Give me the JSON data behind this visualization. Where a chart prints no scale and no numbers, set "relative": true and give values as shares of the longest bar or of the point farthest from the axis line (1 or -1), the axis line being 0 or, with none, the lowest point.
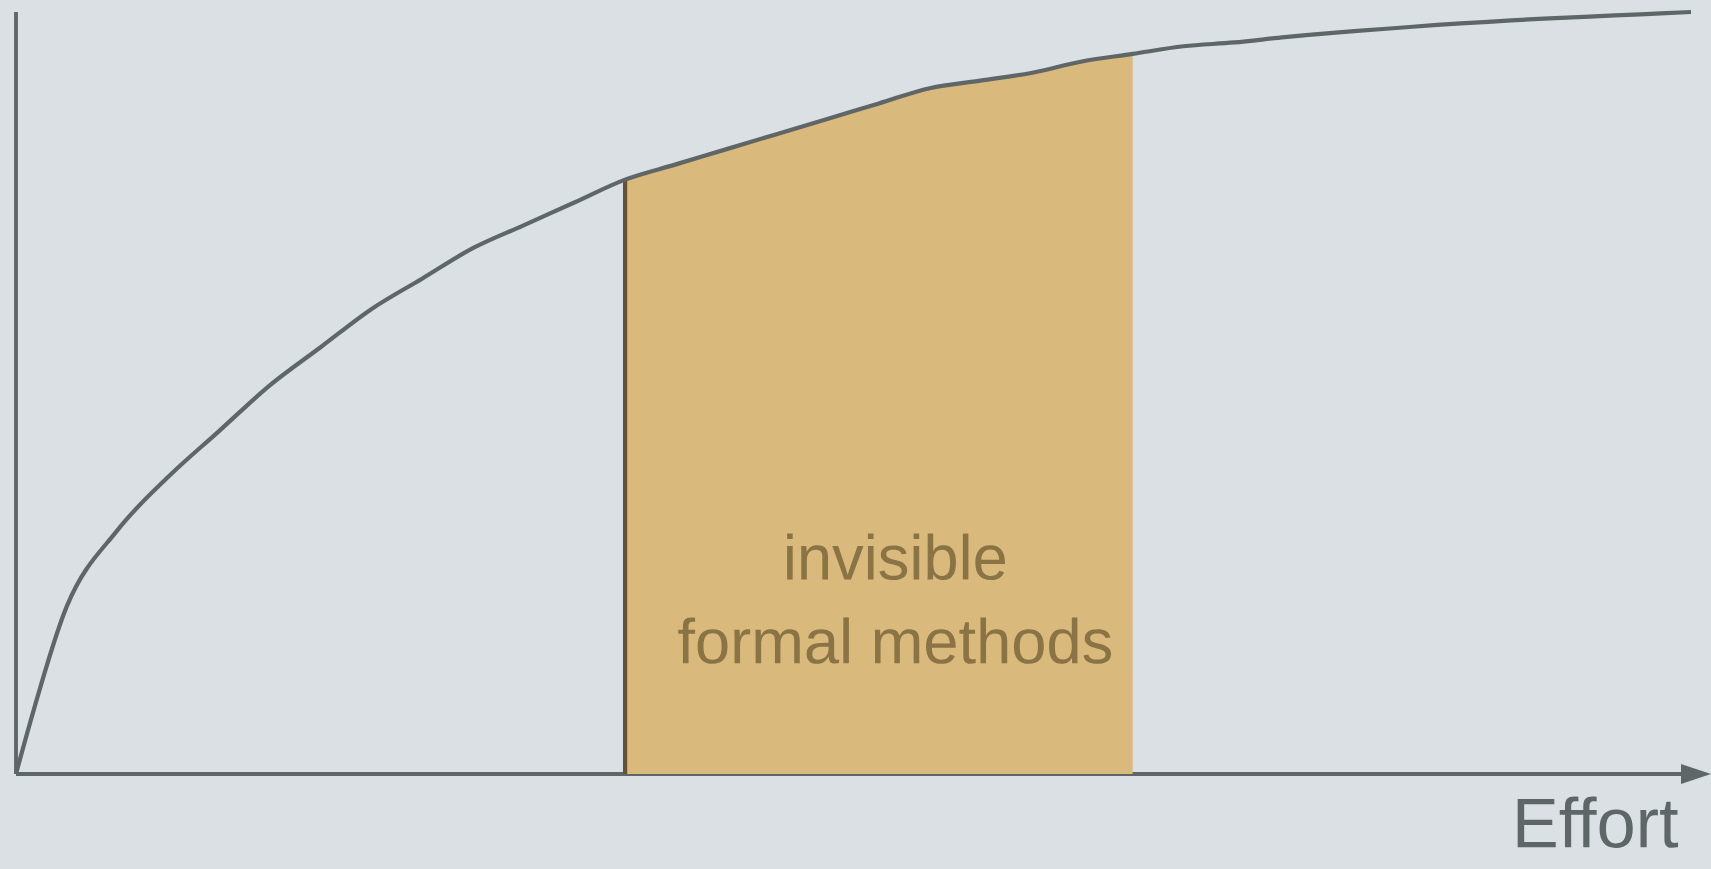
{
  "chart_data": {
    "type": "line",
    "relative": true,
    "xlabel": "Effort",
    "categories": [
      null,
      null,
      null,
      null,
      null,
      null,
      null,
      null,
      null,
      null,
      null,
      null,
      null,
      null,
      null,
      null,
      null,
      null,
      null,
      null,
      null,
      null,
      null,
      null,
      null,
      null,
      null,
      null,
      null,
      null,
      null,
      null,
      null,
      null
    ],
    "series": [
      {
        "type": "area",
        "color": "#d9b97c",
        "values": [
          null,
          null,
          null,
          null,
          null,
          null,
          null,
          null,
          null,
          null,
          null,
          null,
          0.78,
          0.8,
          0.82,
          0.84,
          0.86,
          0.88,
          0.9,
          0.91,
          0.92,
          0.935,
          0.945,
          null,
          null,
          null,
          null,
          null,
          null,
          null,
          null,
          null,
          null,
          null
        ]
      },
      {
        "color": "#5f6668",
        "values": [
          0,
          0.22,
          0.32,
          0.39,
          0.45,
          0.51,
          0.56,
          0.61,
          0.65,
          0.69,
          0.72,
          0.75,
          0.78,
          0.8,
          0.82,
          0.84,
          0.86,
          0.88,
          0.9,
          0.91,
          0.92,
          0.935,
          0.945,
          0.955,
          0.96,
          0.967,
          0.973,
          0.978,
          0.983,
          0.987,
          0.991,
          0.994,
          0.997,
          1.0
        ]
      }
    ],
    "annotations": [
      "invisible",
      "formal methods"
    ]
  }
}
